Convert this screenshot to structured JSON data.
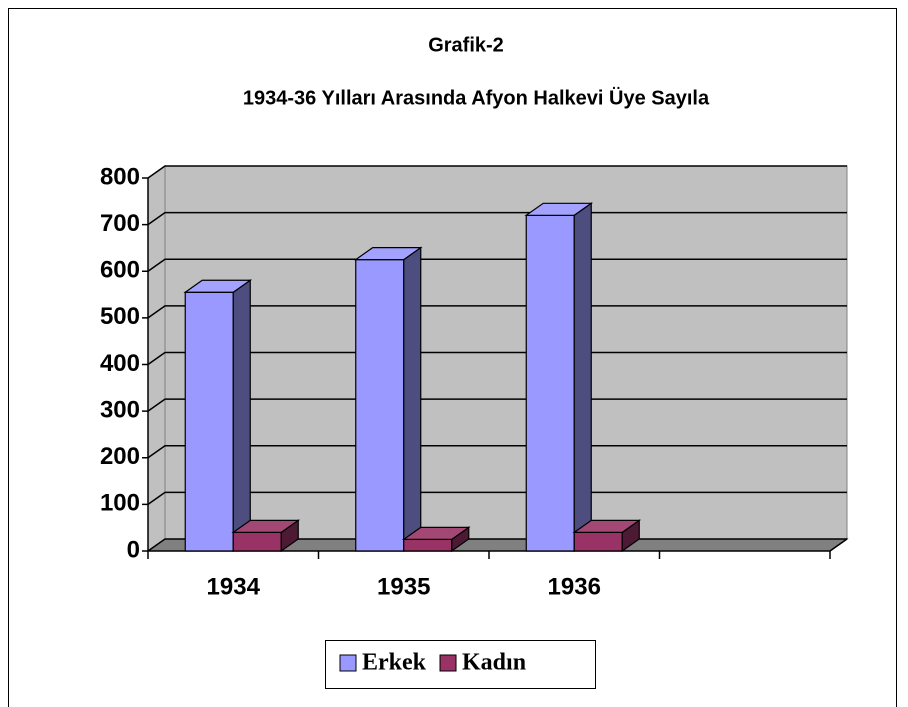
{
  "chart_data": {
    "type": "bar3d",
    "title": "Grafik-2",
    "subtitle": "1934-36 Yılları Arasında Afyon Halkevi Üye Sayıla",
    "categories": [
      "1934",
      "1935",
      "1936",
      null
    ],
    "series": [
      {
        "name": "Erkek",
        "color": "#9999ff",
        "values": [
          555,
          625,
          720,
          null
        ]
      },
      {
        "name": "Kadın",
        "color": "#993366",
        "values": [
          40,
          25,
          40,
          null
        ]
      }
    ],
    "ylim": [
      0,
      800
    ],
    "yticks": [
      0,
      100,
      200,
      300,
      400,
      500,
      600,
      700,
      800
    ],
    "grid": true,
    "legend": "bottom"
  }
}
